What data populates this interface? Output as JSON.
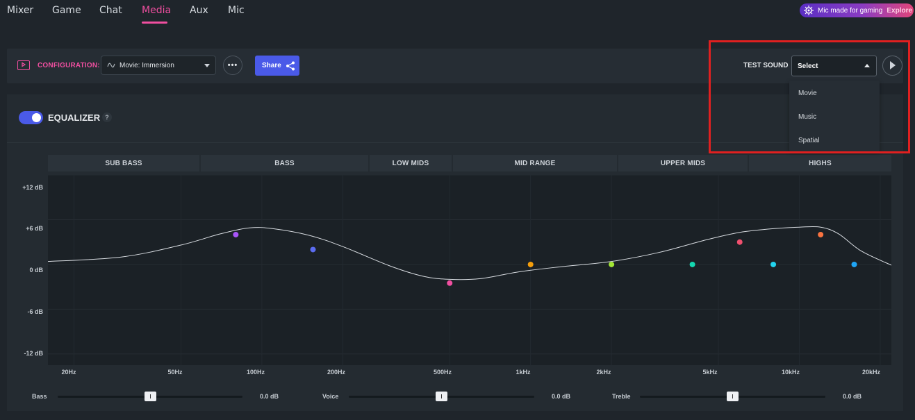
{
  "nav": {
    "tabs": [
      {
        "label": "Mixer",
        "active": false
      },
      {
        "label": "Game",
        "active": false
      },
      {
        "label": "Chat",
        "active": false
      },
      {
        "label": "Media",
        "active": true
      },
      {
        "label": "Aux",
        "active": false
      },
      {
        "label": "Mic",
        "active": false
      }
    ]
  },
  "promo": {
    "text": "Mic made for gaming",
    "action": "Explore",
    "icon": "steelseries-logo-icon"
  },
  "config": {
    "label": "CONFIGURATION:",
    "preset": "Movie: Immersion",
    "more_label": "•••",
    "share_label": "Share"
  },
  "test_sound": {
    "label": "TEST SOUND",
    "selected": "Select",
    "options": [
      "Movie",
      "Music",
      "Spatial"
    ]
  },
  "equalizer": {
    "title": "EQUALIZER",
    "help": "?",
    "enabled": true,
    "bands": [
      "SUB BASS",
      "BASS",
      "LOW MIDS",
      "MID RANGE",
      "UPPER MIDS",
      "HIGHS"
    ],
    "y_ticks": [
      "+12 dB",
      "+6 dB",
      "0 dB",
      "-6 dB",
      "-12 dB"
    ],
    "x_ticks": [
      "20Hz",
      "50Hz",
      "100Hz",
      "200Hz",
      "500Hz",
      "1kHz",
      "2kHz",
      "5kHz",
      "10kHz",
      "20kHz"
    ]
  },
  "chart_data": {
    "type": "line",
    "xscale": "log",
    "xlim": [
      16,
      22000
    ],
    "ylim": [
      -13.5,
      12
    ],
    "points": [
      {
        "freq": 80,
        "gain": 4,
        "color": "#a855f7"
      },
      {
        "freq": 155,
        "gain": 2,
        "color": "#5b6cf0"
      },
      {
        "freq": 500,
        "gain": -2.5,
        "color": "#f04fa0"
      },
      {
        "freq": 1000,
        "gain": 0,
        "color": "#f59e0b"
      },
      {
        "freq": 2000,
        "gain": 0,
        "color": "#a3e635"
      },
      {
        "freq": 4000,
        "gain": 0,
        "color": "#14d8b0"
      },
      {
        "freq": 6000,
        "gain": 3,
        "color": "#f0506e"
      },
      {
        "freq": 8000,
        "gain": 0,
        "color": "#22d3ee"
      },
      {
        "freq": 12000,
        "gain": 4,
        "color": "#f97340"
      },
      {
        "freq": 16000,
        "gain": 0,
        "color": "#1fa5f5"
      }
    ],
    "curve": [
      {
        "freq": 16,
        "gain": 0.4
      },
      {
        "freq": 30,
        "gain": 1.0
      },
      {
        "freq": 50,
        "gain": 2.6
      },
      {
        "freq": 70,
        "gain": 4.1
      },
      {
        "freq": 90,
        "gain": 4.9
      },
      {
        "freq": 110,
        "gain": 4.8
      },
      {
        "freq": 150,
        "gain": 3.9
      },
      {
        "freq": 200,
        "gain": 2.4
      },
      {
        "freq": 300,
        "gain": -0.2
      },
      {
        "freq": 400,
        "gain": -1.6
      },
      {
        "freq": 500,
        "gain": -2.0
      },
      {
        "freq": 650,
        "gain": -1.9
      },
      {
        "freq": 900,
        "gain": -1.0
      },
      {
        "freq": 1300,
        "gain": -0.3
      },
      {
        "freq": 2000,
        "gain": 0.4
      },
      {
        "freq": 3000,
        "gain": 1.6
      },
      {
        "freq": 4500,
        "gain": 3.3
      },
      {
        "freq": 6000,
        "gain": 4.3
      },
      {
        "freq": 8000,
        "gain": 4.8
      },
      {
        "freq": 10000,
        "gain": 5.0
      },
      {
        "freq": 12000,
        "gain": 5.0
      },
      {
        "freq": 14000,
        "gain": 4.1
      },
      {
        "freq": 17000,
        "gain": 1.8
      },
      {
        "freq": 22000,
        "gain": -0.1
      }
    ]
  },
  "sliders": [
    {
      "label": "Bass",
      "value": "0.0 dB",
      "level": 0.5
    },
    {
      "label": "Voice",
      "value": "0.0 dB",
      "level": 0.5
    },
    {
      "label": "Treble",
      "value": "0.0 dB",
      "level": 0.5
    }
  ]
}
